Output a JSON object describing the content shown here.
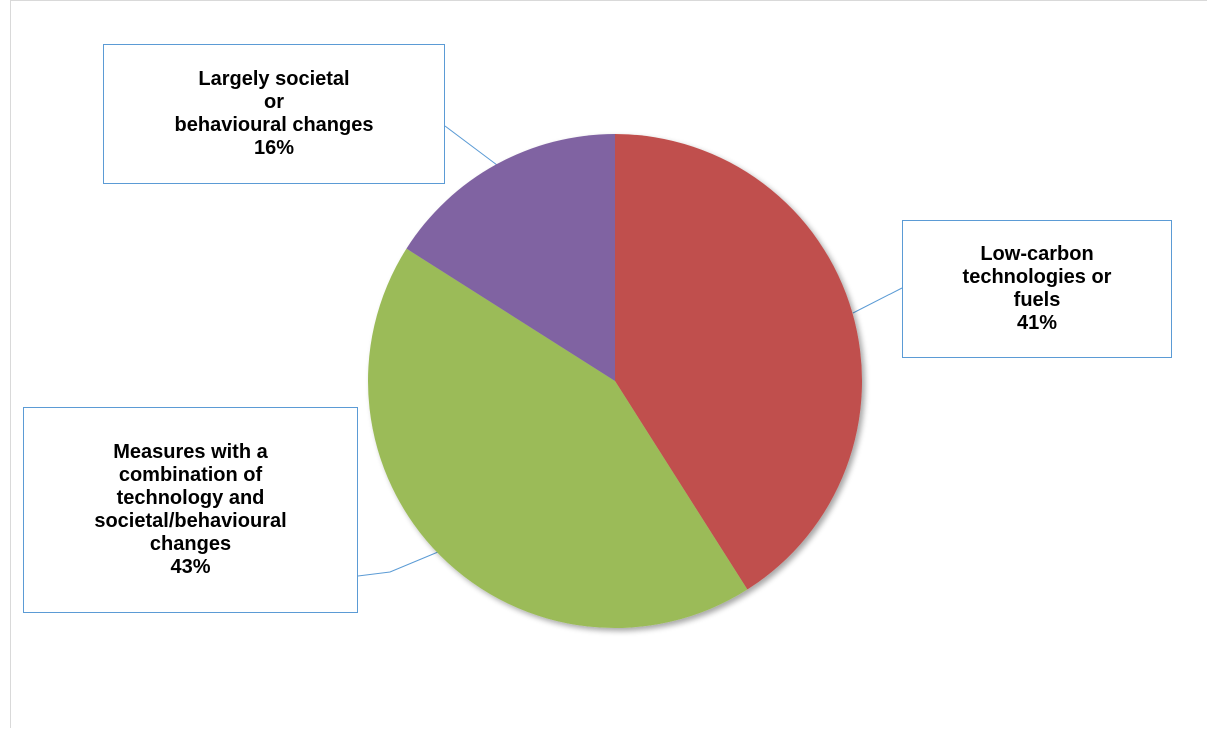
{
  "chart_data": {
    "type": "pie",
    "title": "",
    "start_angle_deg": 0,
    "direction": "clockwise",
    "slices": [
      {
        "category": "Low-carbon technologies or fuels",
        "value": 41,
        "value_label": "41%",
        "color": "#c0504d",
        "label_lines": [
          "Low-carbon",
          "technologies or",
          "fuels"
        ]
      },
      {
        "category": "Measures with a combination of technology and societal/behavioural changes",
        "value": 43,
        "value_label": "43%",
        "color": "#9bbb59",
        "label_lines": [
          "Measures with a",
          "combination of",
          "technology and",
          "societal/behavioural",
          "changes"
        ]
      },
      {
        "category": "Largely societal or behavioural changes",
        "value": 16,
        "value_label": "16%",
        "color": "#8064a2",
        "label_lines": [
          "Largely societal",
          "or",
          "behavioural changes"
        ]
      }
    ],
    "legend": "none",
    "data_labels": "callouts"
  }
}
